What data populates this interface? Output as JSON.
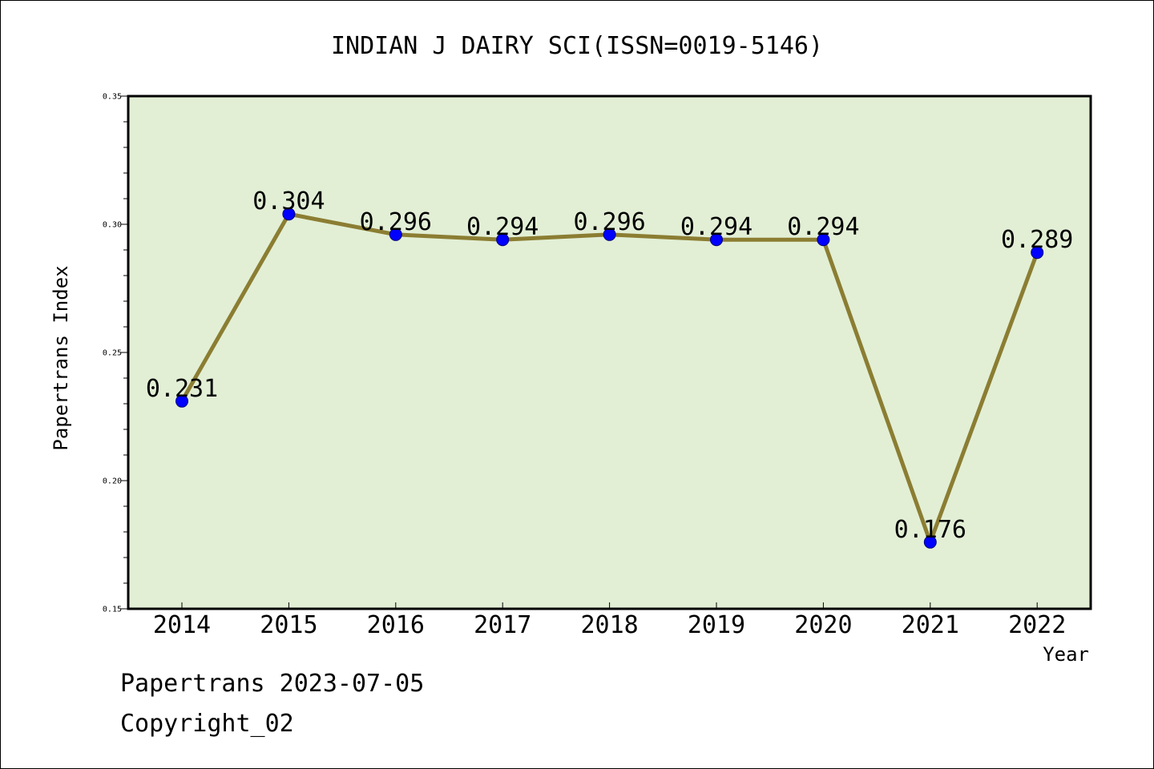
{
  "chart_data": {
    "type": "line",
    "title": "INDIAN J DAIRY SCI(ISSN=0019-5146)",
    "xlabel": "Year",
    "ylabel": "Papertrans Index",
    "categories": [
      "2014",
      "2015",
      "2016",
      "2017",
      "2018",
      "2019",
      "2020",
      "2021",
      "2022"
    ],
    "series": [
      {
        "values": [
          0.231,
          0.304,
          0.296,
          0.294,
          0.296,
          0.294,
          0.294,
          0.176,
          0.289
        ],
        "labels": [
          "0.231",
          "0.304",
          "0.296",
          "0.294",
          "0.296",
          "0.294",
          "0.294",
          "0.176",
          "0.289"
        ]
      }
    ],
    "ylim": [
      0.15,
      0.35
    ],
    "yticks": [
      "0.15",
      "0.20",
      "0.25",
      "0.30",
      "0.35"
    ],
    "grid": false,
    "legend": "none",
    "colors": {
      "plot_background": "#e2efd5",
      "line": "#8b7d32",
      "marker": "#0000ff"
    }
  },
  "footer": {
    "line1": "Papertrans 2023-07-05",
    "line2": "Copyright_02"
  }
}
